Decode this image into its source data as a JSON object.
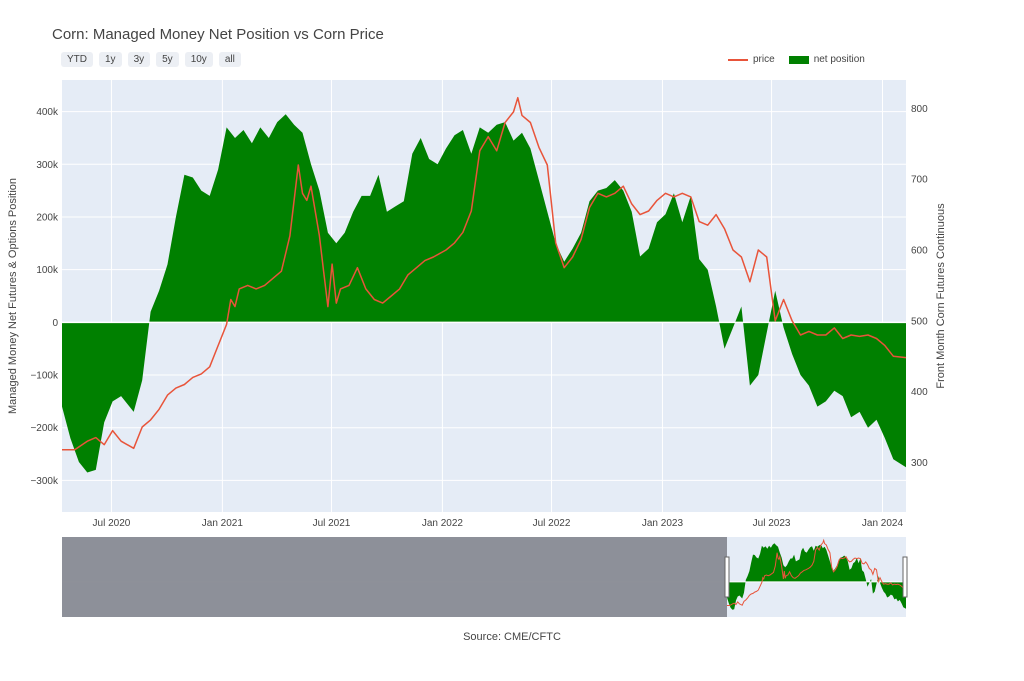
{
  "title": "Corn: Managed Money Net Position vs Corn Price",
  "range_buttons": [
    "YTD",
    "1y",
    "3y",
    "5y",
    "10y",
    "all"
  ],
  "legend": {
    "price": "price",
    "net": "net position"
  },
  "source": "Source: CME/CFTC",
  "colors": {
    "net": "#008000",
    "price": "#e8543a",
    "plot_bg": "#e5ecf6",
    "range_shade": "#888b94"
  },
  "chart_data": {
    "type": "area",
    "title": "Corn: Managed Money Net Position vs Corn Price",
    "y_left_label": "Managed Money Net Futures & Options Position",
    "y_right_label": "Front Month Corn Futures Continuous",
    "x_range": [
      "2020-04-10",
      "2024-02-09"
    ],
    "y_left_range": [
      -360000,
      460000
    ],
    "y_right_range": [
      230,
      840
    ],
    "x_ticks": [
      {
        "date": "2020-07-01",
        "label": "Jul 2020"
      },
      {
        "date": "2021-01-01",
        "label": "Jan 2021"
      },
      {
        "date": "2021-07-01",
        "label": "Jul 2021"
      },
      {
        "date": "2022-01-01",
        "label": "Jan 2022"
      },
      {
        "date": "2022-07-01",
        "label": "Jul 2022"
      },
      {
        "date": "2023-01-01",
        "label": "Jan 2023"
      },
      {
        "date": "2023-07-01",
        "label": "Jul 2023"
      },
      {
        "date": "2024-01-01",
        "label": "Jan 2024"
      }
    ],
    "y_left_ticks": [
      {
        "v": 400000,
        "label": "400k"
      },
      {
        "v": 300000,
        "label": "300k"
      },
      {
        "v": 200000,
        "label": "200k"
      },
      {
        "v": 100000,
        "label": "100k"
      },
      {
        "v": 0,
        "label": "0"
      },
      {
        "v": -100000,
        "label": "−100k"
      },
      {
        "v": -200000,
        "label": "−200k"
      },
      {
        "v": -300000,
        "label": "−300k"
      }
    ],
    "y_right_ticks": [
      {
        "v": 800,
        "label": "800"
      },
      {
        "v": 700,
        "label": "700"
      },
      {
        "v": 600,
        "label": "600"
      },
      {
        "v": 500,
        "label": "500"
      },
      {
        "v": 400,
        "label": "400"
      },
      {
        "v": 300,
        "label": "300"
      }
    ],
    "grid": true,
    "legend_position": "top-right",
    "series": [
      {
        "name": "net position",
        "axis": "left",
        "style": "area",
        "points": [
          [
            "2020-04-10",
            -160000
          ],
          [
            "2020-04-24",
            -220000
          ],
          [
            "2020-05-08",
            -265000
          ],
          [
            "2020-05-22",
            -285000
          ],
          [
            "2020-06-05",
            -280000
          ],
          [
            "2020-06-19",
            -190000
          ],
          [
            "2020-07-03",
            -150000
          ],
          [
            "2020-07-17",
            -140000
          ],
          [
            "2020-07-31",
            -160000
          ],
          [
            "2020-08-07",
            -170000
          ],
          [
            "2020-08-21",
            -110000
          ],
          [
            "2020-09-04",
            20000
          ],
          [
            "2020-09-18",
            60000
          ],
          [
            "2020-10-02",
            110000
          ],
          [
            "2020-10-16",
            200000
          ],
          [
            "2020-10-30",
            280000
          ],
          [
            "2020-11-13",
            275000
          ],
          [
            "2020-11-27",
            250000
          ],
          [
            "2020-12-11",
            240000
          ],
          [
            "2020-12-25",
            290000
          ],
          [
            "2021-01-08",
            370000
          ],
          [
            "2021-01-22",
            350000
          ],
          [
            "2021-02-05",
            365000
          ],
          [
            "2021-02-19",
            340000
          ],
          [
            "2021-03-05",
            370000
          ],
          [
            "2021-03-19",
            350000
          ],
          [
            "2021-04-02",
            380000
          ],
          [
            "2021-04-16",
            395000
          ],
          [
            "2021-04-30",
            375000
          ],
          [
            "2021-05-14",
            360000
          ],
          [
            "2021-05-28",
            300000
          ],
          [
            "2021-06-11",
            250000
          ],
          [
            "2021-06-25",
            170000
          ],
          [
            "2021-07-09",
            150000
          ],
          [
            "2021-07-23",
            170000
          ],
          [
            "2021-08-06",
            210000
          ],
          [
            "2021-08-20",
            240000
          ],
          [
            "2021-09-03",
            240000
          ],
          [
            "2021-09-17",
            280000
          ],
          [
            "2021-10-01",
            210000
          ],
          [
            "2021-10-15",
            220000
          ],
          [
            "2021-10-29",
            230000
          ],
          [
            "2021-11-12",
            320000
          ],
          [
            "2021-11-26",
            350000
          ],
          [
            "2021-12-10",
            310000
          ],
          [
            "2021-12-24",
            300000
          ],
          [
            "2022-01-07",
            330000
          ],
          [
            "2022-01-21",
            355000
          ],
          [
            "2022-02-04",
            365000
          ],
          [
            "2022-02-18",
            320000
          ],
          [
            "2022-03-04",
            370000
          ],
          [
            "2022-03-18",
            360000
          ],
          [
            "2022-04-01",
            375000
          ],
          [
            "2022-04-15",
            380000
          ],
          [
            "2022-04-29",
            345000
          ],
          [
            "2022-05-13",
            360000
          ],
          [
            "2022-05-27",
            330000
          ],
          [
            "2022-06-10",
            270000
          ],
          [
            "2022-06-24",
            210000
          ],
          [
            "2022-07-08",
            150000
          ],
          [
            "2022-07-22",
            115000
          ],
          [
            "2022-08-05",
            140000
          ],
          [
            "2022-08-19",
            170000
          ],
          [
            "2022-09-02",
            230000
          ],
          [
            "2022-09-16",
            250000
          ],
          [
            "2022-09-30",
            255000
          ],
          [
            "2022-10-14",
            270000
          ],
          [
            "2022-10-28",
            250000
          ],
          [
            "2022-11-11",
            210000
          ],
          [
            "2022-11-25",
            125000
          ],
          [
            "2022-12-09",
            140000
          ],
          [
            "2022-12-23",
            190000
          ],
          [
            "2023-01-06",
            205000
          ],
          [
            "2023-01-20",
            245000
          ],
          [
            "2023-02-03",
            190000
          ],
          [
            "2023-02-17",
            240000
          ],
          [
            "2023-03-03",
            120000
          ],
          [
            "2023-03-17",
            100000
          ],
          [
            "2023-03-31",
            30000
          ],
          [
            "2023-04-14",
            -50000
          ],
          [
            "2023-04-28",
            -10000
          ],
          [
            "2023-05-12",
            30000
          ],
          [
            "2023-05-26",
            -120000
          ],
          [
            "2023-06-09",
            -100000
          ],
          [
            "2023-06-23",
            -20000
          ],
          [
            "2023-07-07",
            60000
          ],
          [
            "2023-07-21",
            -10000
          ],
          [
            "2023-08-04",
            -60000
          ],
          [
            "2023-08-18",
            -100000
          ],
          [
            "2023-09-01",
            -120000
          ],
          [
            "2023-09-15",
            -160000
          ],
          [
            "2023-09-29",
            -150000
          ],
          [
            "2023-10-13",
            -130000
          ],
          [
            "2023-10-27",
            -140000
          ],
          [
            "2023-11-10",
            -180000
          ],
          [
            "2023-11-24",
            -170000
          ],
          [
            "2023-12-08",
            -200000
          ],
          [
            "2023-12-22",
            -185000
          ],
          [
            "2024-01-05",
            -220000
          ],
          [
            "2024-01-19",
            -260000
          ],
          [
            "2024-02-02",
            -270000
          ],
          [
            "2024-02-09",
            -275000
          ]
        ]
      },
      {
        "name": "price",
        "axis": "right",
        "style": "line",
        "points": [
          [
            "2020-04-10",
            318
          ],
          [
            "2020-05-01",
            318
          ],
          [
            "2020-05-22",
            330
          ],
          [
            "2020-06-05",
            335
          ],
          [
            "2020-06-19",
            325
          ],
          [
            "2020-07-03",
            345
          ],
          [
            "2020-07-17",
            330
          ],
          [
            "2020-08-07",
            320
          ],
          [
            "2020-08-21",
            350
          ],
          [
            "2020-09-04",
            360
          ],
          [
            "2020-09-18",
            375
          ],
          [
            "2020-10-02",
            395
          ],
          [
            "2020-10-16",
            405
          ],
          [
            "2020-10-30",
            410
          ],
          [
            "2020-11-13",
            420
          ],
          [
            "2020-11-27",
            425
          ],
          [
            "2020-12-11",
            435
          ],
          [
            "2020-12-25",
            465
          ],
          [
            "2021-01-08",
            495
          ],
          [
            "2021-01-15",
            530
          ],
          [
            "2021-01-22",
            520
          ],
          [
            "2021-01-29",
            545
          ],
          [
            "2021-02-12",
            550
          ],
          [
            "2021-02-26",
            545
          ],
          [
            "2021-03-12",
            550
          ],
          [
            "2021-03-26",
            560
          ],
          [
            "2021-04-09",
            570
          ],
          [
            "2021-04-23",
            620
          ],
          [
            "2021-05-07",
            720
          ],
          [
            "2021-05-14",
            680
          ],
          [
            "2021-05-21",
            670
          ],
          [
            "2021-05-28",
            690
          ],
          [
            "2021-06-11",
            620
          ],
          [
            "2021-06-18",
            570
          ],
          [
            "2021-06-25",
            520
          ],
          [
            "2021-07-02",
            580
          ],
          [
            "2021-07-09",
            525
          ],
          [
            "2021-07-16",
            545
          ],
          [
            "2021-07-30",
            550
          ],
          [
            "2021-08-13",
            575
          ],
          [
            "2021-08-27",
            545
          ],
          [
            "2021-09-10",
            530
          ],
          [
            "2021-09-24",
            525
          ],
          [
            "2021-10-08",
            535
          ],
          [
            "2021-10-22",
            545
          ],
          [
            "2021-11-05",
            565
          ],
          [
            "2021-11-19",
            575
          ],
          [
            "2021-12-03",
            585
          ],
          [
            "2021-12-17",
            590
          ],
          [
            "2022-01-07",
            600
          ],
          [
            "2022-01-21",
            610
          ],
          [
            "2022-02-04",
            625
          ],
          [
            "2022-02-18",
            655
          ],
          [
            "2022-03-04",
            740
          ],
          [
            "2022-03-18",
            760
          ],
          [
            "2022-04-01",
            740
          ],
          [
            "2022-04-15",
            780
          ],
          [
            "2022-04-29",
            795
          ],
          [
            "2022-05-06",
            815
          ],
          [
            "2022-05-13",
            790
          ],
          [
            "2022-05-27",
            780
          ],
          [
            "2022-06-10",
            745
          ],
          [
            "2022-06-24",
            720
          ],
          [
            "2022-07-08",
            610
          ],
          [
            "2022-07-22",
            575
          ],
          [
            "2022-08-05",
            590
          ],
          [
            "2022-08-19",
            615
          ],
          [
            "2022-09-02",
            660
          ],
          [
            "2022-09-16",
            680
          ],
          [
            "2022-09-30",
            675
          ],
          [
            "2022-10-14",
            680
          ],
          [
            "2022-10-28",
            690
          ],
          [
            "2022-11-11",
            665
          ],
          [
            "2022-11-25",
            650
          ],
          [
            "2022-12-09",
            655
          ],
          [
            "2022-12-23",
            670
          ],
          [
            "2023-01-06",
            680
          ],
          [
            "2023-01-20",
            675
          ],
          [
            "2023-02-03",
            680
          ],
          [
            "2023-02-17",
            675
          ],
          [
            "2023-03-03",
            640
          ],
          [
            "2023-03-17",
            635
          ],
          [
            "2023-03-31",
            650
          ],
          [
            "2023-04-14",
            630
          ],
          [
            "2023-04-28",
            600
          ],
          [
            "2023-05-12",
            590
          ],
          [
            "2023-05-26",
            555
          ],
          [
            "2023-06-09",
            600
          ],
          [
            "2023-06-23",
            590
          ],
          [
            "2023-07-07",
            500
          ],
          [
            "2023-07-21",
            530
          ],
          [
            "2023-08-04",
            500
          ],
          [
            "2023-08-18",
            480
          ],
          [
            "2023-09-01",
            485
          ],
          [
            "2023-09-15",
            480
          ],
          [
            "2023-09-29",
            480
          ],
          [
            "2023-10-13",
            490
          ],
          [
            "2023-10-27",
            475
          ],
          [
            "2023-11-10",
            480
          ],
          [
            "2023-11-24",
            478
          ],
          [
            "2023-12-08",
            480
          ],
          [
            "2023-12-22",
            475
          ],
          [
            "2024-01-05",
            465
          ],
          [
            "2024-01-19",
            450
          ],
          [
            "2024-02-09",
            448
          ]
        ]
      }
    ]
  }
}
